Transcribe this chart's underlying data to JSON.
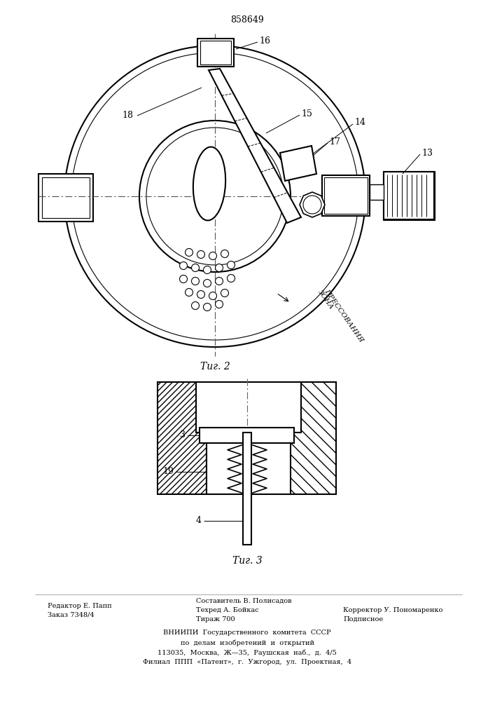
{
  "title": "858649",
  "fig2_label": "Τиг. 2",
  "fig3_label": "Τиг. 3",
  "background_color": "#ffffff",
  "line_color": "#000000",
  "footer_left_col1": [
    "Редактор Е. Папп",
    "Заказ 7348/4"
  ],
  "footer_left_col2": [
    "Составитель В. Полисадов",
    "Техред А. Бойкас",
    "Тираж 700"
  ],
  "footer_left_col3": [
    "Корректор У. Пономаренко",
    "Подписное"
  ],
  "footer_bottom": [
    "ВНИИПИ  Государственного  комитета  СССР",
    "по  делам  изобретений  и  открытий",
    "113035,  Москва,  Ж—35,  Раушская  наб.,  д.  4/5",
    "Филиал  ППП  «Патент»,  г.  Ужгород,  ул.  Проектная,  4"
  ]
}
